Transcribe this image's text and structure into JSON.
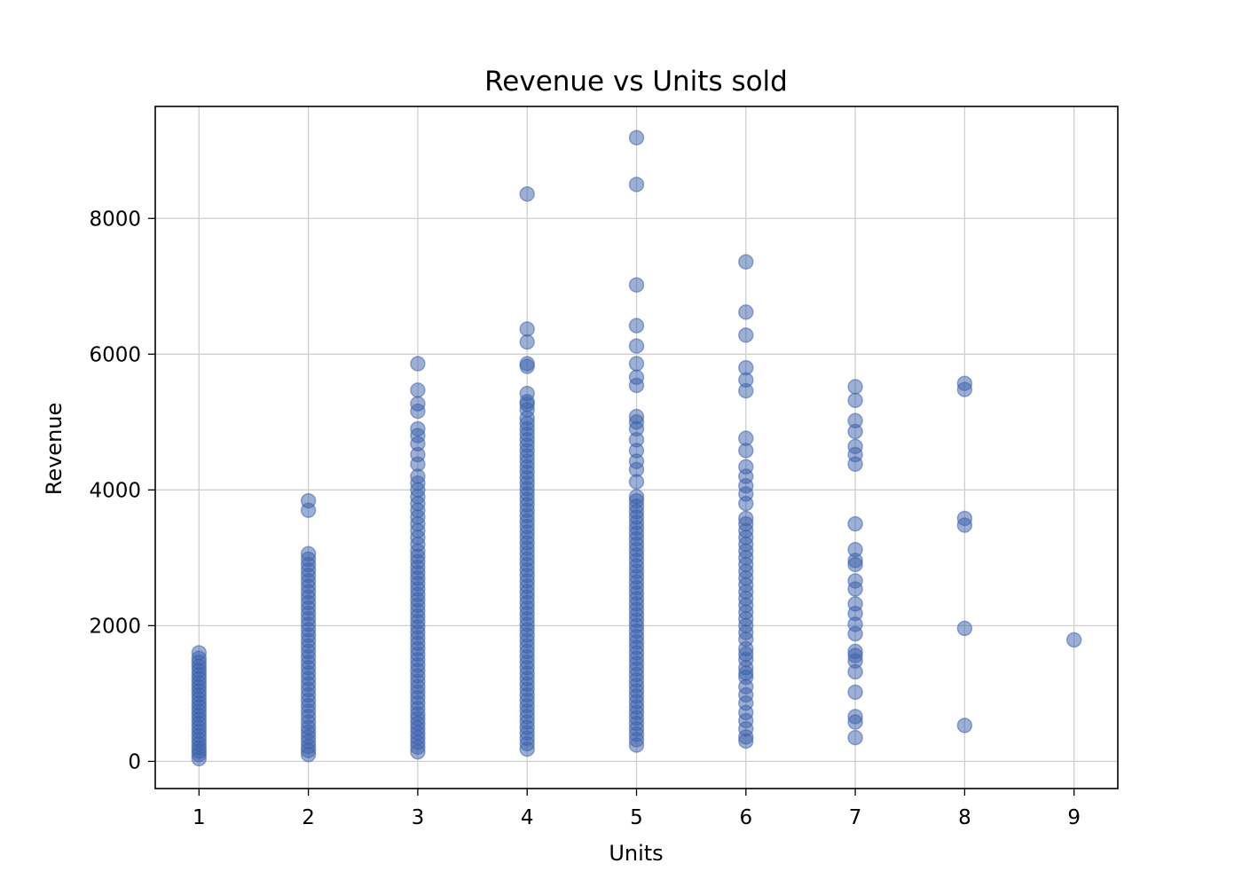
{
  "chart_data": {
    "type": "scatter",
    "title": "Revenue vs Units sold",
    "xlabel": "Units",
    "ylabel": "Revenue",
    "xlim": [
      0.6,
      9.4
    ],
    "ylim": [
      -400,
      9650
    ],
    "xticks": [
      1,
      2,
      3,
      4,
      5,
      6,
      7,
      8,
      9
    ],
    "yticks": [
      0,
      2000,
      4000,
      6000,
      8000
    ],
    "grid": true,
    "marker_color": "#3a5fab",
    "marker_opacity": 0.5,
    "series": [
      {
        "points": [
          [
            1,
            40
          ],
          [
            1,
            100
          ],
          [
            1,
            150
          ],
          [
            1,
            200
          ],
          [
            1,
            260
          ],
          [
            1,
            320
          ],
          [
            1,
            380
          ],
          [
            1,
            440
          ],
          [
            1,
            500
          ],
          [
            1,
            560
          ],
          [
            1,
            620
          ],
          [
            1,
            680
          ],
          [
            1,
            740
          ],
          [
            1,
            800
          ],
          [
            1,
            860
          ],
          [
            1,
            920
          ],
          [
            1,
            980
          ],
          [
            1,
            1040
          ],
          [
            1,
            1100
          ],
          [
            1,
            1160
          ],
          [
            1,
            1220
          ],
          [
            1,
            1280
          ],
          [
            1,
            1340
          ],
          [
            1,
            1400
          ],
          [
            1,
            1460
          ],
          [
            1,
            1520
          ],
          [
            1,
            1600
          ],
          [
            2,
            100
          ],
          [
            2,
            160
          ],
          [
            2,
            220
          ],
          [
            2,
            290
          ],
          [
            2,
            360
          ],
          [
            2,
            430
          ],
          [
            2,
            500
          ],
          [
            2,
            580
          ],
          [
            2,
            660
          ],
          [
            2,
            740
          ],
          [
            2,
            820
          ],
          [
            2,
            900
          ],
          [
            2,
            980
          ],
          [
            2,
            1060
          ],
          [
            2,
            1140
          ],
          [
            2,
            1220
          ],
          [
            2,
            1300
          ],
          [
            2,
            1380
          ],
          [
            2,
            1460
          ],
          [
            2,
            1540
          ],
          [
            2,
            1620
          ],
          [
            2,
            1700
          ],
          [
            2,
            1780
          ],
          [
            2,
            1860
          ],
          [
            2,
            1940
          ],
          [
            2,
            2020
          ],
          [
            2,
            2100
          ],
          [
            2,
            2180
          ],
          [
            2,
            2260
          ],
          [
            2,
            2340
          ],
          [
            2,
            2420
          ],
          [
            2,
            2500
          ],
          [
            2,
            2580
          ],
          [
            2,
            2660
          ],
          [
            2,
            2740
          ],
          [
            2,
            2820
          ],
          [
            2,
            2900
          ],
          [
            2,
            2980
          ],
          [
            2,
            3060
          ],
          [
            2,
            3700
          ],
          [
            2,
            3840
          ],
          [
            3,
            140
          ],
          [
            3,
            210
          ],
          [
            3,
            280
          ],
          [
            3,
            350
          ],
          [
            3,
            420
          ],
          [
            3,
            490
          ],
          [
            3,
            560
          ],
          [
            3,
            630
          ],
          [
            3,
            700
          ],
          [
            3,
            780
          ],
          [
            3,
            860
          ],
          [
            3,
            940
          ],
          [
            3,
            1020
          ],
          [
            3,
            1100
          ],
          [
            3,
            1180
          ],
          [
            3,
            1260
          ],
          [
            3,
            1340
          ],
          [
            3,
            1420
          ],
          [
            3,
            1500
          ],
          [
            3,
            1580
          ],
          [
            3,
            1660
          ],
          [
            3,
            1740
          ],
          [
            3,
            1820
          ],
          [
            3,
            1900
          ],
          [
            3,
            1980
          ],
          [
            3,
            2060
          ],
          [
            3,
            2140
          ],
          [
            3,
            2220
          ],
          [
            3,
            2300
          ],
          [
            3,
            2380
          ],
          [
            3,
            2460
          ],
          [
            3,
            2540
          ],
          [
            3,
            2620
          ],
          [
            3,
            2700
          ],
          [
            3,
            2780
          ],
          [
            3,
            2860
          ],
          [
            3,
            2940
          ],
          [
            3,
            3020
          ],
          [
            3,
            3100
          ],
          [
            3,
            3200
          ],
          [
            3,
            3300
          ],
          [
            3,
            3400
          ],
          [
            3,
            3500
          ],
          [
            3,
            3600
          ],
          [
            3,
            3700
          ],
          [
            3,
            3800
          ],
          [
            3,
            3900
          ],
          [
            3,
            4000
          ],
          [
            3,
            4100
          ],
          [
            3,
            4200
          ],
          [
            3,
            4380
          ],
          [
            3,
            4520
          ],
          [
            3,
            4680
          ],
          [
            3,
            4800
          ],
          [
            3,
            4900
          ],
          [
            3,
            5160
          ],
          [
            3,
            5270
          ],
          [
            3,
            5470
          ],
          [
            3,
            5860
          ],
          [
            4,
            180
          ],
          [
            4,
            260
          ],
          [
            4,
            340
          ],
          [
            4,
            420
          ],
          [
            4,
            500
          ],
          [
            4,
            580
          ],
          [
            4,
            660
          ],
          [
            4,
            740
          ],
          [
            4,
            820
          ],
          [
            4,
            900
          ],
          [
            4,
            980
          ],
          [
            4,
            1060
          ],
          [
            4,
            1140
          ],
          [
            4,
            1220
          ],
          [
            4,
            1300
          ],
          [
            4,
            1380
          ],
          [
            4,
            1460
          ],
          [
            4,
            1540
          ],
          [
            4,
            1620
          ],
          [
            4,
            1700
          ],
          [
            4,
            1780
          ],
          [
            4,
            1860
          ],
          [
            4,
            1940
          ],
          [
            4,
            2020
          ],
          [
            4,
            2100
          ],
          [
            4,
            2180
          ],
          [
            4,
            2260
          ],
          [
            4,
            2340
          ],
          [
            4,
            2420
          ],
          [
            4,
            2500
          ],
          [
            4,
            2580
          ],
          [
            4,
            2660
          ],
          [
            4,
            2740
          ],
          [
            4,
            2820
          ],
          [
            4,
            2900
          ],
          [
            4,
            2980
          ],
          [
            4,
            3060
          ],
          [
            4,
            3140
          ],
          [
            4,
            3220
          ],
          [
            4,
            3300
          ],
          [
            4,
            3380
          ],
          [
            4,
            3460
          ],
          [
            4,
            3540
          ],
          [
            4,
            3620
          ],
          [
            4,
            3700
          ],
          [
            4,
            3780
          ],
          [
            4,
            3860
          ],
          [
            4,
            3940
          ],
          [
            4,
            4020
          ],
          [
            4,
            4100
          ],
          [
            4,
            4180
          ],
          [
            4,
            4260
          ],
          [
            4,
            4340
          ],
          [
            4,
            4420
          ],
          [
            4,
            4500
          ],
          [
            4,
            4580
          ],
          [
            4,
            4660
          ],
          [
            4,
            4740
          ],
          [
            4,
            4820
          ],
          [
            4,
            4900
          ],
          [
            4,
            4980
          ],
          [
            4,
            5060
          ],
          [
            4,
            5180
          ],
          [
            4,
            5260
          ],
          [
            4,
            5300
          ],
          [
            4,
            5420
          ],
          [
            4,
            5820
          ],
          [
            4,
            5860
          ],
          [
            4,
            6180
          ],
          [
            4,
            6370
          ],
          [
            4,
            8360
          ],
          [
            5,
            240
          ],
          [
            5,
            320
          ],
          [
            5,
            400
          ],
          [
            5,
            480
          ],
          [
            5,
            560
          ],
          [
            5,
            640
          ],
          [
            5,
            720
          ],
          [
            5,
            800
          ],
          [
            5,
            880
          ],
          [
            5,
            960
          ],
          [
            5,
            1040
          ],
          [
            5,
            1120
          ],
          [
            5,
            1200
          ],
          [
            5,
            1280
          ],
          [
            5,
            1360
          ],
          [
            5,
            1440
          ],
          [
            5,
            1520
          ],
          [
            5,
            1600
          ],
          [
            5,
            1680
          ],
          [
            5,
            1760
          ],
          [
            5,
            1840
          ],
          [
            5,
            1920
          ],
          [
            5,
            2000
          ],
          [
            5,
            2080
          ],
          [
            5,
            2160
          ],
          [
            5,
            2240
          ],
          [
            5,
            2320
          ],
          [
            5,
            2400
          ],
          [
            5,
            2480
          ],
          [
            5,
            2560
          ],
          [
            5,
            2640
          ],
          [
            5,
            2720
          ],
          [
            5,
            2800
          ],
          [
            5,
            2880
          ],
          [
            5,
            2960
          ],
          [
            5,
            3040
          ],
          [
            5,
            3120
          ],
          [
            5,
            3200
          ],
          [
            5,
            3280
          ],
          [
            5,
            3360
          ],
          [
            5,
            3440
          ],
          [
            5,
            3520
          ],
          [
            5,
            3600
          ],
          [
            5,
            3680
          ],
          [
            5,
            3760
          ],
          [
            5,
            3840
          ],
          [
            5,
            3900
          ],
          [
            5,
            4120
          ],
          [
            5,
            4300
          ],
          [
            5,
            4420
          ],
          [
            5,
            4580
          ],
          [
            5,
            4740
          ],
          [
            5,
            4900
          ],
          [
            5,
            5000
          ],
          [
            5,
            5080
          ],
          [
            5,
            5540
          ],
          [
            5,
            5660
          ],
          [
            5,
            5860
          ],
          [
            5,
            6120
          ],
          [
            5,
            6420
          ],
          [
            5,
            7020
          ],
          [
            5,
            8500
          ],
          [
            5,
            9190
          ],
          [
            6,
            300
          ],
          [
            6,
            360
          ],
          [
            6,
            480
          ],
          [
            6,
            600
          ],
          [
            6,
            720
          ],
          [
            6,
            860
          ],
          [
            6,
            980
          ],
          [
            6,
            1100
          ],
          [
            6,
            1240
          ],
          [
            6,
            1300
          ],
          [
            6,
            1380
          ],
          [
            6,
            1500
          ],
          [
            6,
            1580
          ],
          [
            6,
            1660
          ],
          [
            6,
            1800
          ],
          [
            6,
            1900
          ],
          [
            6,
            2000
          ],
          [
            6,
            2100
          ],
          [
            6,
            2200
          ],
          [
            6,
            2300
          ],
          [
            6,
            2400
          ],
          [
            6,
            2500
          ],
          [
            6,
            2600
          ],
          [
            6,
            2700
          ],
          [
            6,
            2800
          ],
          [
            6,
            2900
          ],
          [
            6,
            3000
          ],
          [
            6,
            3100
          ],
          [
            6,
            3200
          ],
          [
            6,
            3300
          ],
          [
            6,
            3400
          ],
          [
            6,
            3500
          ],
          [
            6,
            3580
          ],
          [
            6,
            3800
          ],
          [
            6,
            3940
          ],
          [
            6,
            4060
          ],
          [
            6,
            4200
          ],
          [
            6,
            4340
          ],
          [
            6,
            4580
          ],
          [
            6,
            4760
          ],
          [
            6,
            5460
          ],
          [
            6,
            5620
          ],
          [
            6,
            5800
          ],
          [
            6,
            6280
          ],
          [
            6,
            6620
          ],
          [
            6,
            7360
          ],
          [
            7,
            350
          ],
          [
            7,
            580
          ],
          [
            7,
            660
          ],
          [
            7,
            1020
          ],
          [
            7,
            1320
          ],
          [
            7,
            1480
          ],
          [
            7,
            1560
          ],
          [
            7,
            1620
          ],
          [
            7,
            1880
          ],
          [
            7,
            2020
          ],
          [
            7,
            2180
          ],
          [
            7,
            2320
          ],
          [
            7,
            2540
          ],
          [
            7,
            2660
          ],
          [
            7,
            2900
          ],
          [
            7,
            2960
          ],
          [
            7,
            3120
          ],
          [
            7,
            3500
          ],
          [
            7,
            4380
          ],
          [
            7,
            4520
          ],
          [
            7,
            4640
          ],
          [
            7,
            4860
          ],
          [
            7,
            5020
          ],
          [
            7,
            5320
          ],
          [
            7,
            5520
          ],
          [
            8,
            530
          ],
          [
            8,
            1960
          ],
          [
            8,
            3480
          ],
          [
            8,
            3580
          ],
          [
            8,
            5480
          ],
          [
            8,
            5570
          ],
          [
            9,
            1790
          ]
        ]
      }
    ]
  }
}
